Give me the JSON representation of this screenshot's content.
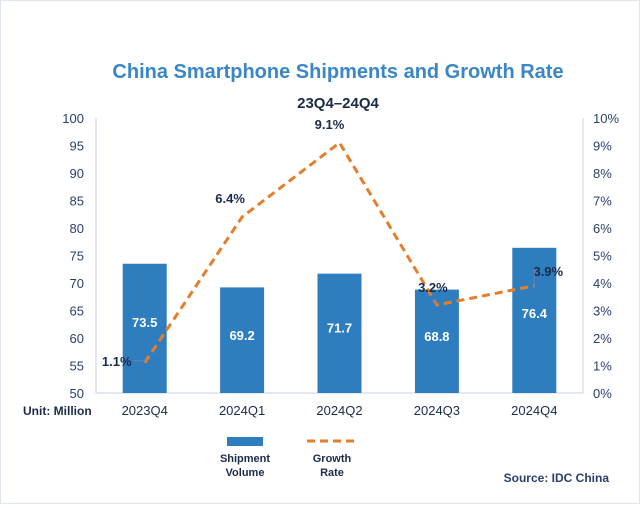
{
  "chart_data": {
    "type": "bar+line",
    "title": "China Smartphone Shipments and Growth Rate",
    "subtitle": "23Q4–24Q4",
    "unit_label": "Unit: Million",
    "source": "Source: IDC China",
    "categories": [
      "2023Q4",
      "2024Q1",
      "2024Q2",
      "2024Q3",
      "2024Q4"
    ],
    "series": [
      {
        "name": "Shipment Volume",
        "legend_line1": "Shipment",
        "legend_line2": "Volume",
        "type": "bar",
        "axis": "left",
        "values": [
          73.5,
          69.2,
          71.7,
          68.8,
          76.4
        ],
        "labels": [
          "73.5",
          "69.2",
          "71.7",
          "68.8",
          "76.4"
        ]
      },
      {
        "name": "Growth Rate",
        "legend_line1": "Growth",
        "legend_line2": "Rate",
        "type": "line",
        "axis": "right",
        "values": [
          1.1,
          6.4,
          9.1,
          3.2,
          3.9
        ],
        "labels": [
          "1.1%",
          "6.4%",
          "9.1%",
          "3.2%",
          "3.9%"
        ]
      }
    ],
    "left_axis": {
      "min": 50,
      "max": 100,
      "step": 5,
      "ticks": [
        "50",
        "55",
        "60",
        "65",
        "70",
        "75",
        "80",
        "85",
        "90",
        "95",
        "100"
      ]
    },
    "right_axis": {
      "min": 0,
      "max": 10,
      "step": 1,
      "ticks": [
        "0%",
        "1%",
        "2%",
        "3%",
        "4%",
        "5%",
        "6%",
        "7%",
        "8%",
        "9%",
        "10%"
      ]
    },
    "colors": {
      "bar": "#2e7ebf",
      "line": "#e47e2b",
      "title": "#3a86c6",
      "text": "#1a2b4a",
      "axis_tick": "#2a3f6e",
      "leader": "#6e7fb0"
    }
  }
}
